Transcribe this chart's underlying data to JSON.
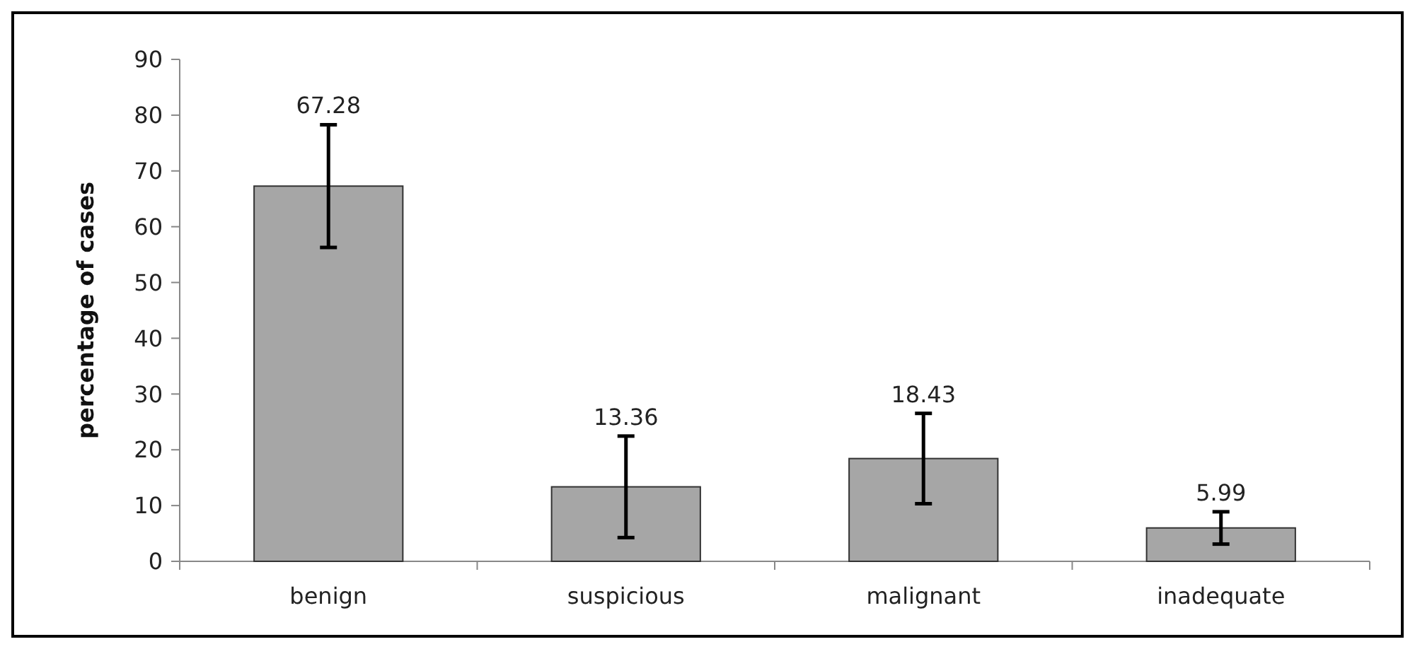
{
  "chart_data": {
    "type": "bar",
    "ylabel": "percentage of cases",
    "categories": [
      "benign",
      "suspicious",
      "malignant",
      "inadequate"
    ],
    "values": [
      67.28,
      13.36,
      18.43,
      5.99
    ],
    "errors": [
      11,
      9.1,
      8.1,
      2.9
    ],
    "color": "#a6a6a6",
    "ylim": [
      0,
      90
    ],
    "yticks": [
      0,
      10,
      20,
      30,
      40,
      50,
      60,
      70,
      80,
      90
    ],
    "data_labels": true
  }
}
